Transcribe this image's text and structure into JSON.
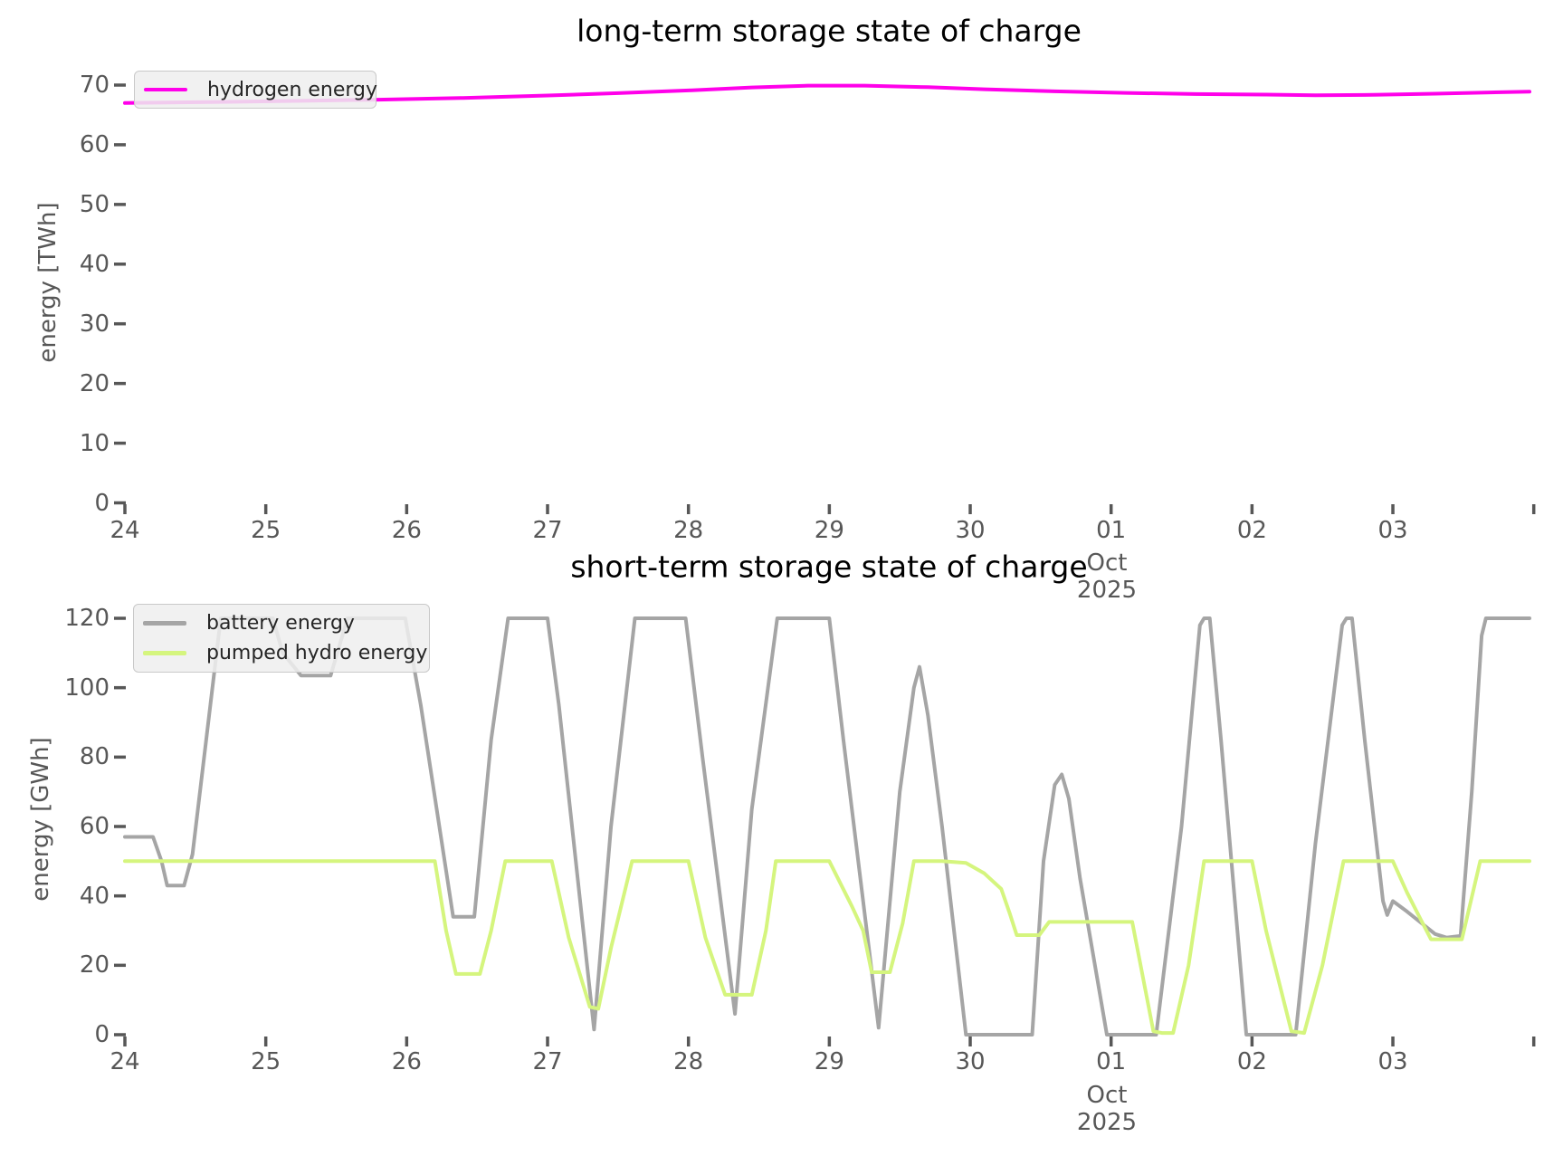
{
  "figure": {
    "background": "#ffffff",
    "tick_color": "#575757",
    "title_color": "#000000"
  },
  "chart_data": [
    {
      "type": "line",
      "title": "long-term storage state of charge",
      "xlabel": "",
      "ylabel": "energy [TWh]",
      "ylim": [
        0,
        74.3
      ],
      "xlim_days": [
        24,
        34.05
      ],
      "grid": false,
      "yticks": [
        0,
        10,
        20,
        30,
        40,
        50,
        60,
        70
      ],
      "xtick_labels": [
        "24",
        "25",
        "26",
        "27",
        "28",
        "29",
        "30",
        "01",
        "02",
        "03"
      ],
      "xtick_days": [
        24,
        25,
        26,
        27,
        28,
        29,
        30,
        31,
        32,
        33
      ],
      "extra_unlabeled_tick_day": 34,
      "x_annotation": {
        "month": "Oct",
        "year": "2025",
        "under_tick": "01"
      },
      "legend": {
        "position": "upper left",
        "entries": [
          {
            "label": "hydrogen energy",
            "color": "#ff00ea"
          }
        ]
      },
      "series": [
        {
          "name": "hydrogen energy",
          "color": "#ff00ea",
          "unit": "TWh",
          "points": [
            [
              24.0,
              67.0
            ],
            [
              24.6,
              67.15
            ],
            [
              25.2,
              67.35
            ],
            [
              25.8,
              67.55
            ],
            [
              26.4,
              67.85
            ],
            [
              27.0,
              68.25
            ],
            [
              27.5,
              68.65
            ],
            [
              28.0,
              69.1
            ],
            [
              28.45,
              69.6
            ],
            [
              28.85,
              69.9
            ],
            [
              29.25,
              69.9
            ],
            [
              29.7,
              69.65
            ],
            [
              30.1,
              69.3
            ],
            [
              30.6,
              68.95
            ],
            [
              31.1,
              68.7
            ],
            [
              31.6,
              68.5
            ],
            [
              32.1,
              68.4
            ],
            [
              32.45,
              68.3
            ],
            [
              32.8,
              68.35
            ],
            [
              33.3,
              68.55
            ],
            [
              33.97,
              68.9
            ]
          ]
        }
      ]
    },
    {
      "type": "line",
      "title": "short-term storage state of charge",
      "xlabel": "",
      "ylabel": "energy [GWh]",
      "ylim": [
        0,
        126
      ],
      "xlim_days": [
        24,
        34.05
      ],
      "grid": false,
      "yticks": [
        0,
        20,
        40,
        60,
        80,
        100,
        120
      ],
      "xtick_labels": [
        "24",
        "25",
        "26",
        "27",
        "28",
        "29",
        "30",
        "01",
        "02",
        "03"
      ],
      "xtick_days": [
        24,
        25,
        26,
        27,
        28,
        29,
        30,
        31,
        32,
        33
      ],
      "extra_unlabeled_tick_day": 34,
      "x_annotation": {
        "month": "Oct",
        "year": "2025",
        "under_tick": "01"
      },
      "legend": {
        "position": "upper left",
        "entries": [
          {
            "label": "battery energy",
            "color": "#a5a5a5"
          },
          {
            "label": "pumped hydro energy",
            "color": "#d5f57e"
          }
        ]
      },
      "series": [
        {
          "name": "battery energy",
          "color": "#a5a5a5",
          "unit": "GWh",
          "points": [
            [
              24.0,
              57
            ],
            [
              24.2,
              57
            ],
            [
              24.26,
              50
            ],
            [
              24.3,
              43
            ],
            [
              24.42,
              43
            ],
            [
              24.48,
              52
            ],
            [
              24.68,
              120
            ],
            [
              25.05,
              120
            ],
            [
              25.12,
              110
            ],
            [
              25.25,
              103.5
            ],
            [
              25.46,
              103.5
            ],
            [
              25.58,
              120
            ],
            [
              25.99,
              120
            ],
            [
              26.1,
              95
            ],
            [
              26.33,
              34
            ],
            [
              26.48,
              34
            ],
            [
              26.6,
              85
            ],
            [
              26.72,
              120
            ],
            [
              27.0,
              120
            ],
            [
              27.08,
              95
            ],
            [
              27.33,
              1.5
            ],
            [
              27.45,
              60
            ],
            [
              27.62,
              120
            ],
            [
              27.98,
              120
            ],
            [
              28.1,
              80
            ],
            [
              28.33,
              6
            ],
            [
              28.45,
              65
            ],
            [
              28.63,
              120
            ],
            [
              29.0,
              120
            ],
            [
              29.1,
              85
            ],
            [
              29.35,
              2
            ],
            [
              29.5,
              70
            ],
            [
              29.6,
              100
            ],
            [
              29.64,
              106
            ],
            [
              29.7,
              92
            ],
            [
              29.8,
              60
            ],
            [
              29.97,
              0
            ],
            [
              30.44,
              0
            ],
            [
              30.52,
              50
            ],
            [
              30.6,
              72
            ],
            [
              30.65,
              75
            ],
            [
              30.7,
              68
            ],
            [
              30.78,
              45
            ],
            [
              30.97,
              0
            ],
            [
              31.32,
              0
            ],
            [
              31.5,
              60
            ],
            [
              31.63,
              118
            ],
            [
              31.66,
              120
            ],
            [
              31.7,
              120
            ],
            [
              31.78,
              85
            ],
            [
              31.96,
              0
            ],
            [
              32.31,
              0
            ],
            [
              32.45,
              55
            ],
            [
              32.64,
              118
            ],
            [
              32.67,
              120
            ],
            [
              32.71,
              120
            ],
            [
              32.8,
              85
            ],
            [
              32.93,
              38.5
            ],
            [
              32.96,
              34.5
            ],
            [
              33.0,
              38.5
            ],
            [
              33.1,
              35.5
            ],
            [
              33.3,
              29
            ],
            [
              33.38,
              28
            ],
            [
              33.48,
              28.5
            ],
            [
              33.56,
              70
            ],
            [
              33.63,
              115
            ],
            [
              33.66,
              120
            ],
            [
              33.97,
              120
            ]
          ]
        },
        {
          "name": "pumped hydro energy",
          "color": "#d5f57e",
          "unit": "GWh",
          "points": [
            [
              24.0,
              50
            ],
            [
              26.2,
              50
            ],
            [
              26.28,
              30
            ],
            [
              26.35,
              17.5
            ],
            [
              26.52,
              17.5
            ],
            [
              26.6,
              30
            ],
            [
              26.7,
              50
            ],
            [
              27.03,
              50
            ],
            [
              27.15,
              28
            ],
            [
              27.3,
              8
            ],
            [
              27.36,
              7.5
            ],
            [
              27.45,
              25
            ],
            [
              27.6,
              50
            ],
            [
              28.0,
              50
            ],
            [
              28.12,
              28
            ],
            [
              28.26,
              11.5
            ],
            [
              28.45,
              11.5
            ],
            [
              28.55,
              30
            ],
            [
              28.62,
              50
            ],
            [
              29.0,
              50
            ],
            [
              29.16,
              37
            ],
            [
              29.24,
              30
            ],
            [
              29.3,
              18
            ],
            [
              29.43,
              18
            ],
            [
              29.52,
              32
            ],
            [
              29.6,
              50
            ],
            [
              29.8,
              50
            ],
            [
              29.97,
              49.5
            ],
            [
              30.1,
              46.5
            ],
            [
              30.22,
              42
            ],
            [
              30.28,
              35
            ],
            [
              30.33,
              28.7
            ],
            [
              30.49,
              28.7
            ],
            [
              30.56,
              32.5
            ],
            [
              31.15,
              32.5
            ],
            [
              31.3,
              1
            ],
            [
              31.36,
              0.5
            ],
            [
              31.44,
              0.5
            ],
            [
              31.55,
              20
            ],
            [
              31.66,
              50
            ],
            [
              32.0,
              50
            ],
            [
              32.1,
              30
            ],
            [
              32.28,
              1
            ],
            [
              32.37,
              0.5
            ],
            [
              32.5,
              20
            ],
            [
              32.65,
              50
            ],
            [
              33.0,
              50
            ],
            [
              33.1,
              41
            ],
            [
              33.2,
              33
            ],
            [
              33.27,
              27.5
            ],
            [
              33.49,
              27.5
            ],
            [
              33.62,
              50
            ],
            [
              33.97,
              50
            ]
          ]
        }
      ]
    }
  ]
}
